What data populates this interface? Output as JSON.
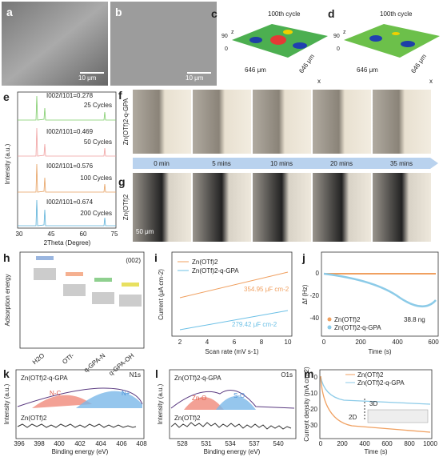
{
  "panels": {
    "a": {
      "label": "a",
      "scale_bar": "10 μm"
    },
    "b": {
      "label": "b",
      "scale_bar": "10 μm"
    },
    "c": {
      "label": "c",
      "cycle": "100th cycle",
      "z_max": "90",
      "z_axis": "z",
      "z_min": "0",
      "y_size": "646 μm",
      "x_size": "646 μm",
      "x_axis": "x"
    },
    "d": {
      "label": "d",
      "cycle": "100th cycle",
      "z_max": "90",
      "z_axis": "z",
      "z_min": "0",
      "y_size": "646 μm",
      "x_size": "646 μm",
      "x_axis": "x"
    },
    "e": {
      "label": "e",
      "y_label": "Intensity (a.u.)",
      "x_label": "2Theta (Degree)",
      "x_ticks": [
        "30",
        "45",
        "60",
        "75"
      ],
      "traces": [
        {
          "ratio": "I002/I101=0.278",
          "name": "25 Cycles"
        },
        {
          "ratio": "I002/I101=0.469",
          "name": "50 Cycles"
        },
        {
          "ratio": "I002/I101=0.576",
          "name": "100 Cycles"
        },
        {
          "ratio": "I002/I101=0.674",
          "name": "200 Cycles"
        }
      ]
    },
    "f": {
      "label": "f",
      "sample": "Zn(OTf)2-q-GPA",
      "times": [
        "0 min",
        "5 mins",
        "10 mins",
        "20 mins",
        "35 mins"
      ]
    },
    "g": {
      "label": "g",
      "sample": "Zn(OTf)2",
      "scale_bar": "50 μm"
    },
    "h": {
      "label": "h",
      "y_label": "Adsorption energy",
      "facet": "(002)",
      "categories": [
        "H2O",
        "OTf-",
        "q-GPA-N",
        "q-GPA-OH"
      ]
    },
    "i": {
      "label": "i",
      "y_label": "Current (μA cm-2)",
      "x_label": "Scan rate (mV s-1)",
      "x_ticks": [
        "2",
        "4",
        "6",
        "8",
        "10"
      ],
      "legend": [
        "Zn(OTf)2",
        "Zn(OTf)2-q-GPA"
      ],
      "annotations": [
        "354.95 μF cm-2",
        "279.42 μF cm-2"
      ]
    },
    "j": {
      "label": "j",
      "y_label": "Δf (Hz)",
      "x_label": "Time (s)",
      "x_ticks": [
        "0",
        "200",
        "400",
        "600"
      ],
      "y_ticks": [
        "0",
        "-20",
        "-40"
      ],
      "annotation": "38.8 ng",
      "legend": [
        "Zn(OTf)2",
        "Zn(OTf)2-q-GPA"
      ]
    },
    "k": {
      "label": "k",
      "core": "N1s",
      "top_sample": "Zn(OTf)2-q-GPA",
      "peaks": [
        "N-C",
        "N+"
      ],
      "bottom_sample": "Zn(OTf)2",
      "x_ticks": [
        "396",
        "398",
        "400",
        "402",
        "404",
        "406",
        "408"
      ],
      "y_label": "Intensity (a.u.)",
      "x_label": "Binding energy (eV)"
    },
    "l": {
      "label": "l",
      "core": "O1s",
      "top_sample": "Zn(OTf)2-q-GPA",
      "peaks": [
        "Zn-O",
        "S-O"
      ],
      "bottom_sample": "Zn(OTf)2",
      "x_ticks": [
        "528",
        "531",
        "534",
        "537",
        "540"
      ],
      "y_label": "Intensity (a.u.)",
      "x_label": "Binding energy (eV)"
    },
    "m": {
      "label": "m",
      "legend": [
        "Zn(OTf)2",
        "Zn(OTf)2-q-GPA"
      ],
      "regimes": [
        "3D",
        "2D"
      ],
      "y_label": "Current density (mA cm-2)",
      "x_label": "Time (s)",
      "x_ticks": [
        "0",
        "200",
        "400",
        "600",
        "800",
        "1000"
      ],
      "y_ticks": [
        "0",
        "-10",
        "-20",
        "-30"
      ]
    }
  }
}
